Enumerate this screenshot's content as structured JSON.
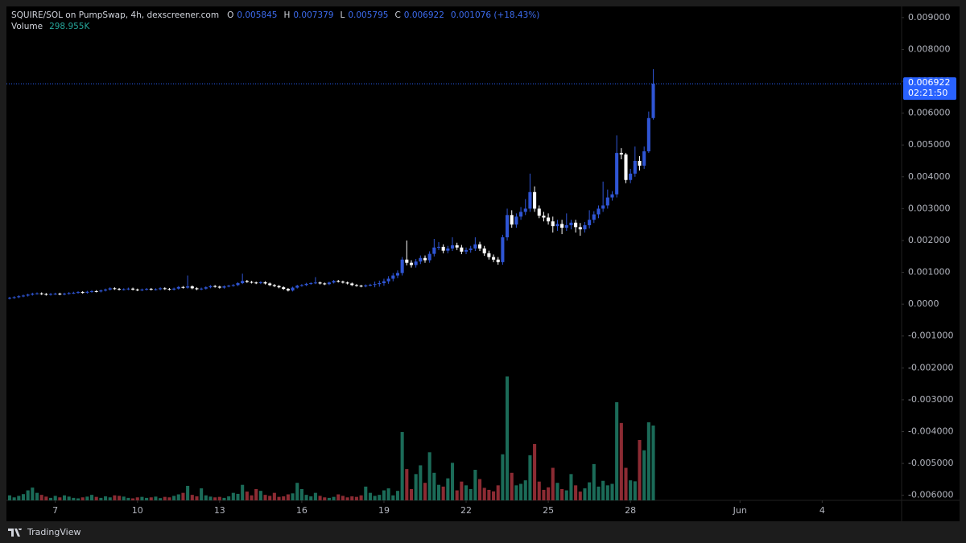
{
  "chart_data": {
    "type": "candlestick",
    "title": "SQUIRE/SOL on PumpSwap, 4h, dexscreener.com",
    "legend": {
      "labels": [
        "O",
        "H",
        "L",
        "C"
      ],
      "change": "0.001076 (+18.43%)"
    },
    "countdown": "02:21:50",
    "brand": "TradingView",
    "up_color": "#2f55d4",
    "down_color": "#ffffff",
    "last_price_color": "#2962ff",
    "open": [
      0.00018,
      0.0002,
      0.00022,
      0.00025,
      0.00027,
      0.0003,
      0.00033,
      0.00034,
      0.00032,
      0.0003,
      0.00032,
      0.00033,
      0.00031,
      0.00033,
      0.00035,
      0.00036,
      0.00038,
      0.00036,
      0.00039,
      0.00041,
      0.0004,
      0.00043,
      0.00046,
      0.0005,
      0.00048,
      0.00046,
      0.00047,
      0.00049,
      0.00046,
      0.00044,
      0.00046,
      0.00048,
      0.00046,
      0.00047,
      0.0005,
      0.00048,
      0.00046,
      0.00049,
      0.00054,
      0.00052,
      0.00056,
      0.0005,
      0.00047,
      0.00049,
      0.00053,
      0.00057,
      0.00055,
      0.00052,
      0.00056,
      0.00058,
      0.0006,
      0.00066,
      0.00073,
      0.0007,
      0.00068,
      0.00066,
      0.00069,
      0.00065,
      0.0006,
      0.00057,
      0.00053,
      0.00048,
      0.00043,
      0.00052,
      0.00058,
      0.0006,
      0.00064,
      0.00066,
      0.00068,
      0.00065,
      0.00063,
      0.00068,
      0.00073,
      0.00071,
      0.00068,
      0.00065,
      0.0006,
      0.00058,
      0.00056,
      0.00059,
      0.00061,
      0.00063,
      0.00066,
      0.00072,
      0.0008,
      0.0009,
      0.00098,
      0.0014,
      0.0013,
      0.00123,
      0.00134,
      0.00145,
      0.00138,
      0.00158,
      0.00178,
      0.0018,
      0.00168,
      0.00175,
      0.00185,
      0.00178,
      0.00165,
      0.0017,
      0.00175,
      0.00188,
      0.00175,
      0.0016,
      0.00148,
      0.0014,
      0.00132,
      0.0021,
      0.0028,
      0.0025,
      0.00275,
      0.0029,
      0.003,
      0.00352,
      0.003,
      0.00278,
      0.00272,
      0.0026,
      0.00245,
      0.00252,
      0.0024,
      0.00248,
      0.00256,
      0.00242,
      0.00235,
      0.00248,
      0.00265,
      0.00282,
      0.003,
      0.0031,
      0.00335,
      0.00345,
      0.00475,
      0.0047,
      0.0039,
      0.0041,
      0.0045,
      0.00435,
      0.0048,
      0.005845
    ],
    "high": [
      0.00023,
      0.00025,
      0.00028,
      0.0003,
      0.00033,
      0.00036,
      0.00037,
      0.00037,
      0.00035,
      0.00035,
      0.00036,
      0.00036,
      0.00036,
      0.00038,
      0.00039,
      0.00041,
      0.00041,
      0.00042,
      0.00044,
      0.00044,
      0.00046,
      0.00049,
      0.00053,
      0.00053,
      0.00051,
      0.0005,
      0.00052,
      0.00052,
      0.00049,
      0.00049,
      0.00051,
      0.00051,
      0.0005,
      0.00053,
      0.00053,
      0.00051,
      0.00052,
      0.00057,
      0.00057,
      0.0009,
      0.00059,
      0.00053,
      0.00052,
      0.00056,
      0.0006,
      0.0006,
      0.00058,
      0.00059,
      0.00061,
      0.00063,
      0.00069,
      0.00096,
      0.00076,
      0.00073,
      0.00071,
      0.00072,
      0.00072,
      0.00068,
      0.00063,
      0.0006,
      0.00056,
      0.00051,
      0.00055,
      0.00061,
      0.00063,
      0.00067,
      0.00069,
      0.00085,
      0.00071,
      0.00068,
      0.00071,
      0.00076,
      0.00076,
      0.00074,
      0.00071,
      0.00068,
      0.00063,
      0.00061,
      0.00062,
      0.00064,
      0.00071,
      0.00074,
      0.0008,
      0.00088,
      0.00098,
      0.00106,
      0.00148,
      0.002,
      0.00138,
      0.00142,
      0.00153,
      0.00153,
      0.00166,
      0.00205,
      0.00195,
      0.00188,
      0.00183,
      0.0021,
      0.00193,
      0.00186,
      0.00178,
      0.00183,
      0.0021,
      0.00196,
      0.00183,
      0.00168,
      0.00156,
      0.00148,
      0.00218,
      0.003,
      0.00295,
      0.00285,
      0.00305,
      0.0033,
      0.0041,
      0.0037,
      0.0031,
      0.0029,
      0.00285,
      0.00275,
      0.00265,
      0.00265,
      0.00285,
      0.00265,
      0.00265,
      0.00255,
      0.00258,
      0.00295,
      0.00292,
      0.0031,
      0.00385,
      0.0036,
      0.00355,
      0.0053,
      0.0049,
      0.00475,
      0.00425,
      0.00495,
      0.00465,
      0.00495,
      0.00605,
      0.007379
    ],
    "low": [
      0.00015,
      0.00017,
      0.00019,
      0.00022,
      0.00024,
      0.00027,
      0.0003,
      0.00029,
      0.00027,
      0.00027,
      0.00029,
      0.00028,
      0.00028,
      0.0003,
      0.00032,
      0.00033,
      0.00033,
      0.00033,
      0.00036,
      0.00037,
      0.00037,
      0.0004,
      0.00043,
      0.00045,
      0.00043,
      0.00043,
      0.00044,
      0.00043,
      0.00041,
      0.00041,
      0.00043,
      0.00043,
      0.00043,
      0.00044,
      0.00045,
      0.00043,
      0.00043,
      0.00046,
      0.00049,
      0.00049,
      0.00047,
      0.00044,
      0.00044,
      0.00046,
      0.0005,
      0.00052,
      0.00049,
      0.00049,
      0.00053,
      0.00055,
      0.00057,
      0.00063,
      0.00067,
      0.00065,
      0.00063,
      0.00063,
      0.00062,
      0.00057,
      0.00054,
      0.0005,
      0.00045,
      0.0004,
      0.0004,
      0.00049,
      0.00055,
      0.00057,
      0.00061,
      0.00063,
      0.00062,
      0.0006,
      0.0006,
      0.00065,
      0.00068,
      0.00065,
      0.00062,
      0.00057,
      0.00055,
      0.00053,
      0.00053,
      0.00056,
      0.00053,
      0.00055,
      0.00058,
      0.00064,
      0.00072,
      0.00082,
      0.0009,
      0.00122,
      0.00115,
      0.00115,
      0.00126,
      0.0013,
      0.0013,
      0.0015,
      0.0017,
      0.0016,
      0.0016,
      0.00167,
      0.0017,
      0.00157,
      0.00157,
      0.00162,
      0.00167,
      0.00167,
      0.00152,
      0.0014,
      0.00132,
      0.00124,
      0.00124,
      0.002,
      0.0024,
      0.0024,
      0.00265,
      0.0028,
      0.0029,
      0.0029,
      0.0027,
      0.0026,
      0.0025,
      0.00225,
      0.0023,
      0.0022,
      0.0023,
      0.00235,
      0.00225,
      0.00215,
      0.00225,
      0.00238,
      0.00255,
      0.0027,
      0.0029,
      0.003,
      0.00325,
      0.00335,
      0.00455,
      0.0038,
      0.0038,
      0.004,
      0.0042,
      0.00425,
      0.00475,
      0.005795
    ],
    "close": [
      0.0002,
      0.00022,
      0.00025,
      0.00027,
      0.0003,
      0.00033,
      0.00034,
      0.00032,
      0.0003,
      0.00032,
      0.00033,
      0.00031,
      0.00033,
      0.00035,
      0.00036,
      0.00038,
      0.00036,
      0.00039,
      0.00041,
      0.0004,
      0.00043,
      0.00046,
      0.0005,
      0.00048,
      0.00046,
      0.00047,
      0.00049,
      0.00046,
      0.00044,
      0.00046,
      0.00048,
      0.00046,
      0.00047,
      0.0005,
      0.00048,
      0.00046,
      0.00049,
      0.00054,
      0.00052,
      0.00056,
      0.0005,
      0.00047,
      0.00049,
      0.00053,
      0.00057,
      0.00055,
      0.00052,
      0.00056,
      0.00058,
      0.0006,
      0.00066,
      0.00073,
      0.0007,
      0.00068,
      0.00066,
      0.00069,
      0.00065,
      0.0006,
      0.00057,
      0.00053,
      0.00048,
      0.00043,
      0.00052,
      0.00058,
      0.0006,
      0.00064,
      0.00066,
      0.00068,
      0.00065,
      0.00063,
      0.00068,
      0.00073,
      0.00071,
      0.00068,
      0.00065,
      0.0006,
      0.00058,
      0.00056,
      0.00059,
      0.00061,
      0.00063,
      0.00066,
      0.00072,
      0.0008,
      0.0009,
      0.00098,
      0.0014,
      0.0013,
      0.00123,
      0.00134,
      0.00145,
      0.00138,
      0.00158,
      0.00178,
      0.0018,
      0.00168,
      0.00175,
      0.00185,
      0.00178,
      0.00165,
      0.0017,
      0.00175,
      0.00188,
      0.00175,
      0.0016,
      0.00148,
      0.0014,
      0.00132,
      0.0021,
      0.0028,
      0.0025,
      0.00275,
      0.0029,
      0.003,
      0.00352,
      0.003,
      0.00278,
      0.00272,
      0.0026,
      0.00245,
      0.00252,
      0.0024,
      0.00248,
      0.00256,
      0.00242,
      0.00235,
      0.00248,
      0.00265,
      0.00282,
      0.003,
      0.0031,
      0.00335,
      0.00345,
      0.00475,
      0.0047,
      0.0039,
      0.0041,
      0.0045,
      0.00435,
      0.0048,
      0.005845,
      0.006922
    ],
    "volume": {
      "name": "Volume",
      "color_up": "#1b6b58",
      "color_down": "#8c2b33",
      "label_color": "#26a69a",
      "values": [
        20000,
        12000,
        18000,
        25000,
        40000,
        51000,
        30000,
        22000,
        15000,
        10000,
        18000,
        12000,
        20000,
        15000,
        10000,
        8000,
        12000,
        15000,
        22000,
        14000,
        10000,
        16000,
        12000,
        20000,
        18000,
        15000,
        10000,
        8000,
        12000,
        14000,
        10000,
        12000,
        15000,
        9000,
        14000,
        12000,
        18000,
        24000,
        30000,
        58000,
        22000,
        16000,
        48000,
        20000,
        15000,
        12000,
        14000,
        10000,
        16000,
        30000,
        26000,
        62000,
        35000,
        20000,
        45000,
        38000,
        22000,
        18000,
        30000,
        14000,
        16000,
        24000,
        28000,
        70000,
        45000,
        22000,
        16000,
        30000,
        18000,
        12000,
        10000,
        14000,
        24000,
        18000,
        12000,
        16000,
        14000,
        20000,
        55000,
        30000,
        18000,
        22000,
        40000,
        48000,
        20000,
        38000,
        273000,
        125000,
        45000,
        105000,
        140000,
        70000,
        192000,
        110000,
        62000,
        55000,
        88000,
        150000,
        40000,
        75000,
        60000,
        45000,
        122000,
        85000,
        50000,
        42000,
        36000,
        60000,
        184000,
        495000,
        110000,
        60000,
        66000,
        80000,
        180000,
        225000,
        75000,
        42000,
        52000,
        130000,
        70000,
        45000,
        40000,
        105000,
        60000,
        35000,
        48000,
        72000,
        145000,
        55000,
        78000,
        60000,
        66000,
        392000,
        309000,
        130000,
        80000,
        76000,
        241000,
        200000,
        312000,
        298955
      ],
      "value_labels": {
        "141": "298.955K"
      },
      "ylim": [
        0,
        1973000
      ]
    },
    "xlim": [
      -0.7,
      195.4
    ],
    "xticks": [
      {
        "value": 10,
        "label": "7"
      },
      {
        "value": 28,
        "label": "10"
      },
      {
        "value": 46,
        "label": "13"
      },
      {
        "value": 64,
        "label": "16"
      },
      {
        "value": 82,
        "label": "19"
      },
      {
        "value": 100,
        "label": "22"
      },
      {
        "value": 118,
        "label": "25"
      },
      {
        "value": 136,
        "label": "28"
      },
      {
        "value": 160,
        "label": "Jun"
      },
      {
        "value": 178,
        "label": "4"
      }
    ],
    "ylim": [
      -0.00616,
      0.00935
    ],
    "yticks": [
      {
        "value": 0.009,
        "label": "0.009000"
      },
      {
        "value": 0.008,
        "label": "0.008000"
      },
      {
        "value": 0.007,
        "label": "0.007000"
      },
      {
        "value": 0.006,
        "label": "0.006000"
      },
      {
        "value": 0.005,
        "label": "0.005000"
      },
      {
        "value": 0.004,
        "label": "0.004000"
      },
      {
        "value": 0.003,
        "label": "0.003000"
      },
      {
        "value": 0.002,
        "label": "0.002000"
      },
      {
        "value": 0.001,
        "label": "0.001000"
      },
      {
        "value": 0,
        "label": "0.0000"
      },
      {
        "value": -0.001,
        "label": "-0.001000"
      },
      {
        "value": -0.002,
        "label": "-0.002000"
      },
      {
        "value": -0.003,
        "label": "-0.003000"
      },
      {
        "value": -0.004,
        "label": "-0.004000"
      },
      {
        "value": -0.005,
        "label": "-0.005000"
      },
      {
        "value": -0.006,
        "label": "-0.006000"
      }
    ],
    "grid": false
  }
}
